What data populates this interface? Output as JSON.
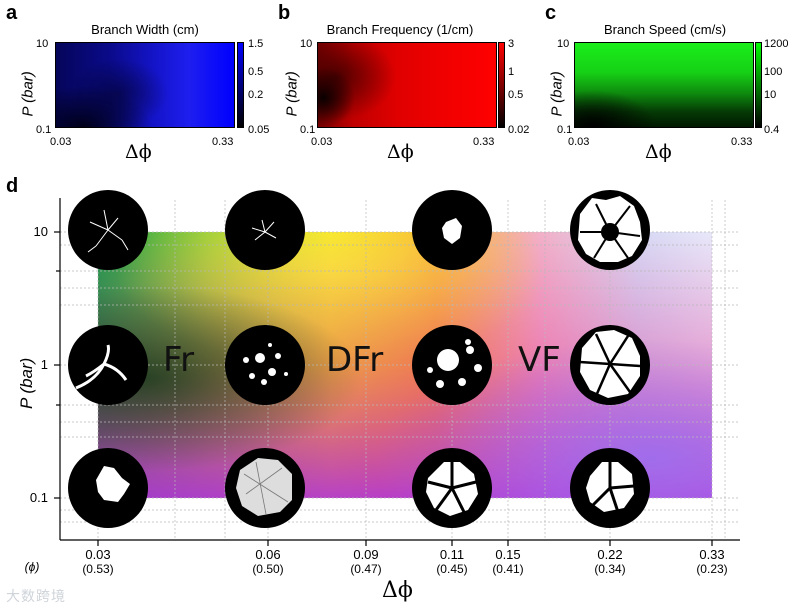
{
  "panels": {
    "a": {
      "letter": "a",
      "title": "Branch Width (cm)",
      "colorbar_ticks": [
        "1.5",
        "0.5",
        "0.2",
        "0.05"
      ],
      "color": "#0000ff"
    },
    "b": {
      "letter": "b",
      "title": "Branch Frequency (1/cm)",
      "colorbar_ticks": [
        "3",
        "1",
        "0.5",
        "0.02"
      ],
      "color": "#ff0000"
    },
    "c": {
      "letter": "c",
      "title": "Branch Speed (cm/s)",
      "colorbar_ticks": [
        "1200",
        "100",
        "10",
        "0.4"
      ],
      "color": "#00ff00"
    },
    "d": {
      "letter": "d"
    }
  },
  "small_axes": {
    "ylabel": "P (bar)",
    "xlabel": "Δϕ",
    "y_ticks": [
      "10",
      "0.1"
    ],
    "x_ticks": [
      "0.03",
      "0.33"
    ]
  },
  "main": {
    "ylabel": "P (bar)",
    "xlabel": "Δϕ",
    "phi_label": "(ϕ)",
    "y_ticks": [
      "10",
      "1",
      "0.1"
    ],
    "x_ticks": [
      {
        "top": "0.03",
        "bottom": "(0.53)"
      },
      {
        "top": "0.06",
        "bottom": "(0.50)"
      },
      {
        "top": "0.09",
        "bottom": "(0.47)"
      },
      {
        "top": "0.11",
        "bottom": "(0.45)"
      },
      {
        "top": "0.15",
        "bottom": "(0.41)"
      },
      {
        "top": "0.22",
        "bottom": "(0.34)"
      },
      {
        "top": "0.33",
        "bottom": "(0.23)"
      }
    ],
    "regimes": [
      "Fr",
      "DFr",
      "VF"
    ]
  },
  "watermark": "大数跨境",
  "chart_data": [
    {
      "type": "heatmap",
      "title": "Branch Width (cm)",
      "xlabel": "Δϕ",
      "ylabel": "P (bar)",
      "x_range": [
        0.03,
        0.33
      ],
      "y_range": [
        0.1,
        10
      ],
      "y_scale": "log",
      "colorbar_range": [
        0.05,
        1.5
      ]
    },
    {
      "type": "heatmap",
      "title": "Branch Frequency (1/cm)",
      "xlabel": "Δϕ",
      "ylabel": "P (bar)",
      "x_range": [
        0.03,
        0.33
      ],
      "y_range": [
        0.1,
        10
      ],
      "y_scale": "log",
      "colorbar_range": [
        0.02,
        3
      ]
    },
    {
      "type": "heatmap",
      "title": "Branch Speed (cm/s)",
      "xlabel": "Δϕ",
      "ylabel": "P (bar)",
      "x_range": [
        0.03,
        0.33
      ],
      "y_range": [
        0.1,
        10
      ],
      "y_scale": "log",
      "colorbar_range": [
        0.4,
        1200
      ]
    },
    {
      "type": "heatmap",
      "xlabel": "Δϕ",
      "ylabel": "P (bar)",
      "x_values": [
        0.03,
        0.06,
        0.09,
        0.11,
        0.15,
        0.22,
        0.33
      ],
      "phi_values": [
        0.53,
        0.5,
        0.47,
        0.45,
        0.41,
        0.34,
        0.23
      ],
      "y_values": [
        0.1,
        1,
        10
      ],
      "y_scale": "log",
      "regions": [
        "Fr",
        "DFr",
        "VF"
      ]
    }
  ]
}
